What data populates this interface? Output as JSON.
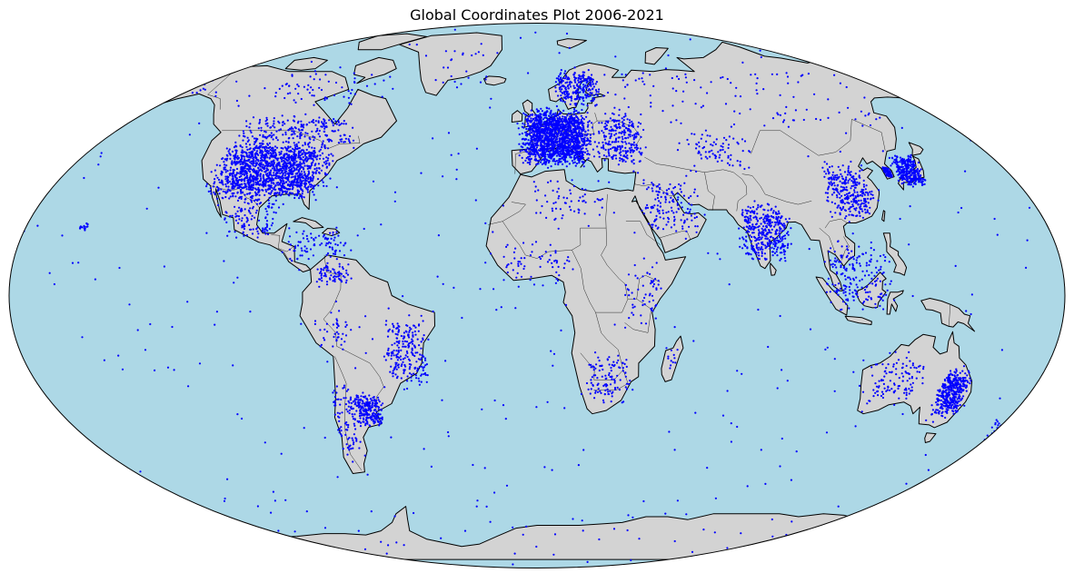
{
  "title": "Global Coordinates Plot 2006-2021",
  "map": {
    "projection": "robinson",
    "ocean_color": "#add8e6",
    "land_color": "#d3d3d3",
    "coastline_color": "#000000",
    "border_color": "#000000",
    "point_color": "#0000ff"
  },
  "chart_data": {
    "type": "scatter",
    "title": "Global Coordinates Plot 2006-2021",
    "marker_color": "#0000ff",
    "clusters": [
      {
        "region": "United States",
        "lon": [
          -124,
          -70
        ],
        "lat": [
          26,
          48
        ],
        "count": 1400
      },
      {
        "region": "Canada south",
        "lon": [
          -124,
          -62
        ],
        "lat": [
          43,
          55
        ],
        "count": 220
      },
      {
        "region": "Canada north",
        "lon": [
          -130,
          -60
        ],
        "lat": [
          55,
          70
        ],
        "count": 60
      },
      {
        "region": "Alaska",
        "lon": [
          -165,
          -140
        ],
        "lat": [
          58,
          70
        ],
        "count": 25
      },
      {
        "region": "Mexico",
        "lon": [
          -112,
          -87
        ],
        "lat": [
          15,
          32
        ],
        "count": 120
      },
      {
        "region": "Central America & Caribbean",
        "lon": [
          -92,
          -60
        ],
        "lat": [
          8,
          22
        ],
        "count": 90
      },
      {
        "region": "Colombia & Venezuela",
        "lon": [
          -78,
          -62
        ],
        "lat": [
          2,
          11
        ],
        "count": 70
      },
      {
        "region": "Brazil",
        "lon": [
          -55,
          -35
        ],
        "lat": [
          -30,
          -3
        ],
        "count": 220
      },
      {
        "region": "Argentina & Uruguay",
        "lon": [
          -68,
          -54
        ],
        "lat": [
          -40,
          -28
        ],
        "count": 220
      },
      {
        "region": "Chile & Patagonia",
        "lon": [
          -75,
          -64
        ],
        "lat": [
          -54,
          -20
        ],
        "count": 90
      },
      {
        "region": "Peru & Bolivia",
        "lon": [
          -80,
          -60
        ],
        "lat": [
          -20,
          -2
        ],
        "count": 40
      },
      {
        "region": "Western & Central Europe",
        "lon": [
          -10,
          25
        ],
        "lat": [
          36,
          58
        ],
        "count": 1600
      },
      {
        "region": "Scandinavia",
        "lon": [
          5,
          30
        ],
        "lat": [
          55,
          70
        ],
        "count": 250
      },
      {
        "region": "Eastern Europe & Turkey",
        "lon": [
          20,
          45
        ],
        "lat": [
          36,
          56
        ],
        "count": 250
      },
      {
        "region": "Russia",
        "lon": [
          30,
          140
        ],
        "lat": [
          50,
          68
        ],
        "count": 110
      },
      {
        "region": "Middle East",
        "lon": [
          34,
          60
        ],
        "lat": [
          15,
          38
        ],
        "count": 140
      },
      {
        "region": "Central Asia",
        "lon": [
          50,
          85
        ],
        "lat": [
          35,
          50
        ],
        "count": 80
      },
      {
        "region": "India",
        "lon": [
          68,
          90
        ],
        "lat": [
          8,
          30
        ],
        "count": 380
      },
      {
        "region": "China",
        "lon": [
          100,
          122
        ],
        "lat": [
          20,
          42
        ],
        "count": 300
      },
      {
        "region": "Korea",
        "lon": [
          126,
          129.5
        ],
        "lat": [
          34.5,
          38.5
        ],
        "count": 70
      },
      {
        "region": "Japan",
        "lon": [
          129,
          142
        ],
        "lat": [
          31,
          43
        ],
        "count": 300
      },
      {
        "region": "Southeast Asia",
        "lon": [
          95,
          125
        ],
        "lat": [
          -8,
          20
        ],
        "count": 190
      },
      {
        "region": "Australia east",
        "lon": [
          140,
          154
        ],
        "lat": [
          -38,
          -20
        ],
        "count": 380
      },
      {
        "region": "Australia other",
        "lon": [
          113,
          140
        ],
        "lat": [
          -35,
          -15
        ],
        "count": 110
      },
      {
        "region": "New Zealand",
        "lon": [
          166,
          178
        ],
        "lat": [
          -46,
          -35
        ],
        "count": 60
      },
      {
        "region": "North Africa",
        "lon": [
          -10,
          35
        ],
        "lat": [
          20,
          37
        ],
        "count": 60
      },
      {
        "region": "West Africa",
        "lon": [
          -18,
          15
        ],
        "lat": [
          0,
          18
        ],
        "count": 60
      },
      {
        "region": "East Africa",
        "lon": [
          28,
          45
        ],
        "lat": [
          -12,
          12
        ],
        "count": 60
      },
      {
        "region": "Southern Africa",
        "lon": [
          15,
          35
        ],
        "lat": [
          -34,
          -15
        ],
        "count": 110
      },
      {
        "region": "Madagascar",
        "lon": [
          43,
          50
        ],
        "lat": [
          -25,
          -12
        ],
        "count": 12
      },
      {
        "region": "Hawaii",
        "lon": [
          -160,
          -155
        ],
        "lat": [
          19,
          22
        ],
        "count": 15
      },
      {
        "region": "Greenland & Iceland",
        "lon": [
          -50,
          -15
        ],
        "lat": [
          60,
          80
        ],
        "count": 20
      },
      {
        "region": "Antarctica",
        "lon": [
          -170,
          170
        ],
        "lat": [
          -90,
          -70
        ],
        "count": 40
      },
      {
        "region": "Open ocean (scattered)",
        "lon": [
          -180,
          180
        ],
        "lat": [
          -75,
          85
        ],
        "count": 380
      }
    ]
  }
}
